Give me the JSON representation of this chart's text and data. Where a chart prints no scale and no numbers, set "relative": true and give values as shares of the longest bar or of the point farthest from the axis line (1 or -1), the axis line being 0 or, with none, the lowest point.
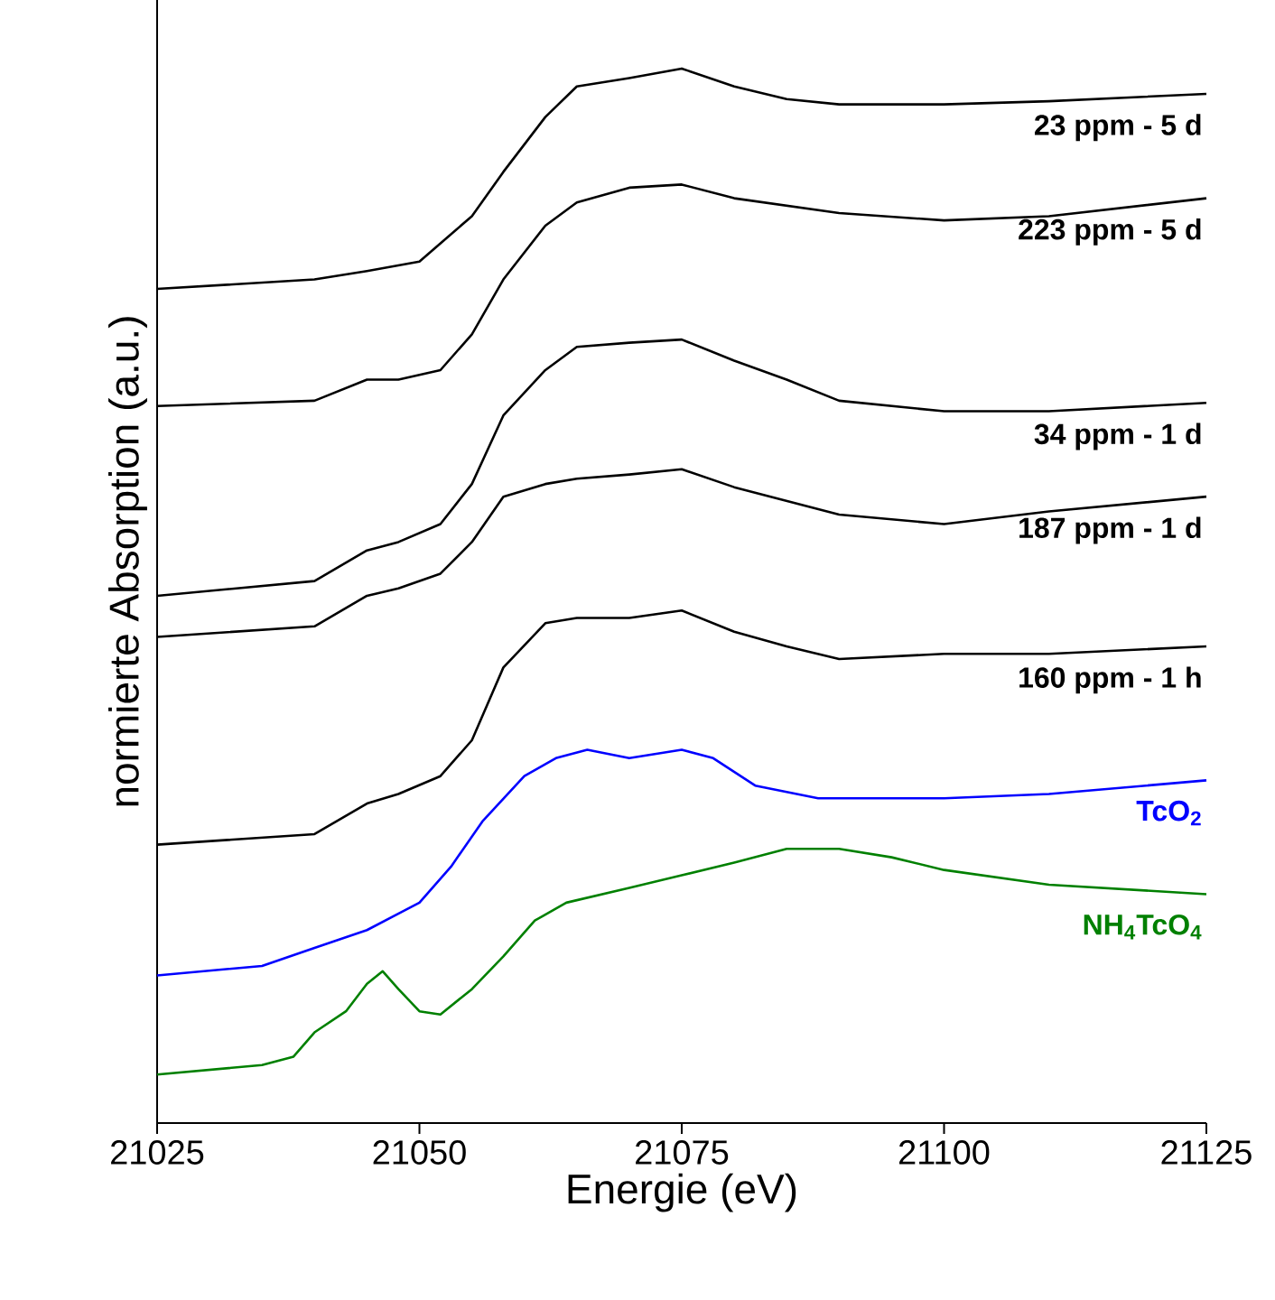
{
  "chart_data": {
    "type": "line",
    "relative": true,
    "xlabel": "Energie (eV)",
    "ylabel": "normierte Absorption (a.u.)",
    "xlim": [
      21025,
      21125
    ],
    "xticks": [
      21025,
      21050,
      21075,
      21100,
      21125
    ],
    "marker": "none",
    "line_style": "solid",
    "series": [
      {
        "name": "23 ppm - 5 d",
        "color": "#000000",
        "x": [
          21025,
          21040,
          21045,
          21050,
          21055,
          21058,
          21062,
          21065,
          21070,
          21075,
          21080,
          21085,
          21090,
          21100,
          21110,
          21125
        ],
        "values": [
          0.791,
          0.8,
          0.808,
          0.817,
          0.86,
          0.902,
          0.954,
          0.983,
          0.991,
          1.0,
          0.983,
          0.971,
          0.966,
          0.966,
          0.969,
          0.976
        ]
      },
      {
        "name": "223 ppm - 5 d",
        "color": "#000000",
        "x": [
          21025,
          21040,
          21045,
          21048,
          21052,
          21055,
          21058,
          21062,
          21065,
          21070,
          21075,
          21080,
          21090,
          21100,
          21110,
          21125
        ],
        "values": [
          0.68,
          0.685,
          0.705,
          0.705,
          0.714,
          0.748,
          0.8,
          0.851,
          0.873,
          0.887,
          0.89,
          0.877,
          0.863,
          0.856,
          0.86,
          0.877
        ]
      },
      {
        "name": "34 ppm - 1 d",
        "color": "#000000",
        "x": [
          21025,
          21040,
          21045,
          21048,
          21052,
          21055,
          21058,
          21062,
          21065,
          21070,
          21075,
          21080,
          21085,
          21090,
          21100,
          21110,
          21125
        ],
        "values": [
          0.5,
          0.514,
          0.543,
          0.551,
          0.568,
          0.606,
          0.671,
          0.714,
          0.736,
          0.74,
          0.743,
          0.723,
          0.705,
          0.685,
          0.675,
          0.675,
          0.683
        ]
      },
      {
        "name": "187 ppm - 1 d",
        "color": "#000000",
        "x": [
          21025,
          21040,
          21045,
          21048,
          21052,
          21055,
          21058,
          21062,
          21065,
          21070,
          21075,
          21080,
          21090,
          21100,
          21110,
          21125
        ],
        "values": [
          0.461,
          0.471,
          0.5,
          0.507,
          0.521,
          0.551,
          0.594,
          0.606,
          0.611,
          0.615,
          0.62,
          0.603,
          0.577,
          0.568,
          0.58,
          0.594
        ]
      },
      {
        "name": "160 ppm - 1 h",
        "color": "#000000",
        "x": [
          21025,
          21040,
          21045,
          21048,
          21052,
          21055,
          21058,
          21062,
          21065,
          21070,
          21075,
          21080,
          21085,
          21090,
          21100,
          21110,
          21125
        ],
        "values": [
          0.264,
          0.274,
          0.303,
          0.312,
          0.329,
          0.363,
          0.432,
          0.474,
          0.479,
          0.479,
          0.486,
          0.466,
          0.452,
          0.44,
          0.445,
          0.445,
          0.452
        ]
      },
      {
        "name": "TcO$_{2}$",
        "color": "#0000ff",
        "x": [
          21025,
          21035,
          21040,
          21045,
          21050,
          21053,
          21056,
          21060,
          21063,
          21066,
          21070,
          21075,
          21078,
          21082,
          21088,
          21100,
          21110,
          21125
        ],
        "values": [
          0.14,
          0.149,
          0.166,
          0.183,
          0.209,
          0.243,
          0.286,
          0.329,
          0.346,
          0.354,
          0.346,
          0.354,
          0.346,
          0.32,
          0.308,
          0.308,
          0.312,
          0.325
        ]
      },
      {
        "name": "NH$_{4}$TcO$_{4}$",
        "color": "#008000",
        "x": [
          21025,
          21035,
          21038,
          21040,
          21043,
          21045,
          21046.5,
          21048,
          21050,
          21052,
          21055,
          21058,
          21061,
          21064,
          21070,
          21075,
          21080,
          21085,
          21090,
          21095,
          21100,
          21110,
          21125
        ],
        "values": [
          0.046,
          0.055,
          0.063,
          0.086,
          0.106,
          0.132,
          0.144,
          0.127,
          0.106,
          0.103,
          0.127,
          0.158,
          0.192,
          0.209,
          0.223,
          0.235,
          0.247,
          0.26,
          0.26,
          0.252,
          0.24,
          0.226,
          0.217
        ]
      }
    ]
  }
}
